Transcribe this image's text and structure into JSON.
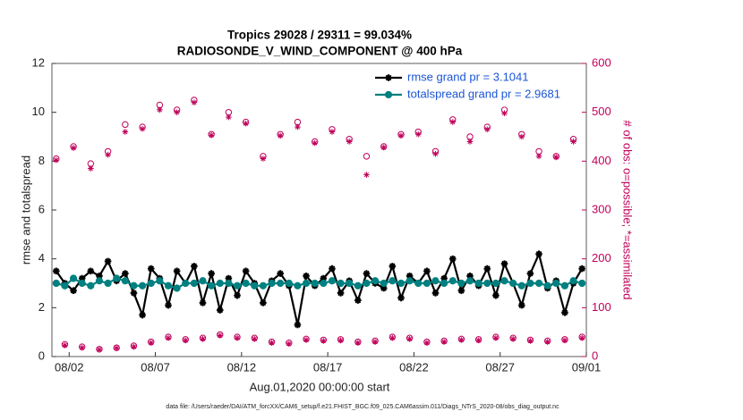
{
  "chart_data": {
    "type": "line",
    "title_lines": [
      "Tropics 29028 / 29311 = 99.034%",
      "RADIOSONDE_V_WIND_COMPONENT @ 400 hPa"
    ],
    "ylabel": "rmse and totalspread",
    "y2label": "# of obs: o=possible; *=assimilated",
    "xlabel": "Aug.01,2020 00:00:00 start",
    "footnote": "data file: /Users/raeder/DAI/ATM_forcXX/CAM6_setup/f.e21.FHIST_BGC.f09_025.CAM6assim.011/Diags_NTrS_2020-08/obs_diag_output.nc",
    "xlim": [
      0,
      31
    ],
    "xticks": [
      {
        "value": 1,
        "label": "08/02"
      },
      {
        "value": 6,
        "label": "08/07"
      },
      {
        "value": 11,
        "label": "08/12"
      },
      {
        "value": 16,
        "label": "08/17"
      },
      {
        "value": 21,
        "label": "08/22"
      },
      {
        "value": 26,
        "label": "08/27"
      },
      {
        "value": 31,
        "label": "09/01"
      }
    ],
    "ylim": [
      0,
      12
    ],
    "yticks": [
      0,
      2,
      4,
      6,
      8,
      10,
      12
    ],
    "y2lim": [
      0,
      600
    ],
    "y2ticks": [
      0,
      100,
      200,
      300,
      400,
      500,
      600
    ],
    "y2color": "#c0005a",
    "legend": "northeast",
    "x": [
      0.25,
      0.75,
      1.25,
      1.75,
      2.25,
      2.75,
      3.25,
      3.75,
      4.25,
      4.75,
      5.25,
      5.75,
      6.25,
      6.75,
      7.25,
      7.75,
      8.25,
      8.75,
      9.25,
      9.75,
      10.25,
      10.75,
      11.25,
      11.75,
      12.25,
      12.75,
      13.25,
      13.75,
      14.25,
      14.75,
      15.25,
      15.75,
      16.25,
      16.75,
      17.25,
      17.75,
      18.25,
      18.75,
      19.25,
      19.75,
      20.25,
      20.75,
      21.25,
      21.75,
      22.25,
      22.75,
      23.25,
      23.75,
      24.25,
      24.75,
      25.25,
      25.75,
      26.25,
      26.75,
      27.25,
      27.75,
      28.25,
      28.75,
      29.25,
      29.75,
      30.25,
      30.75
    ],
    "series": [
      {
        "name": "rmse grand pr = 3.1041",
        "color": "#000000",
        "marker": "*",
        "line": true,
        "values": [
          3.5,
          3.0,
          2.7,
          3.2,
          3.5,
          3.3,
          3.9,
          3.1,
          3.4,
          2.6,
          1.7,
          3.6,
          3.2,
          2.1,
          3.5,
          3.0,
          3.7,
          2.2,
          3.4,
          1.9,
          3.2,
          2.5,
          3.5,
          3.0,
          2.2,
          3.1,
          3.4,
          2.9,
          1.3,
          3.3,
          2.9,
          3.2,
          3.6,
          2.6,
          3.1,
          2.3,
          3.4,
          3.0,
          2.8,
          3.7,
          2.4,
          3.3,
          3.0,
          3.5,
          2.6,
          3.2,
          4.0,
          2.7,
          3.3,
          2.9,
          3.6,
          2.5,
          3.8,
          3.0,
          2.1,
          3.4,
          4.2,
          2.8,
          3.1,
          1.8,
          3.0,
          3.6
        ]
      },
      {
        "name": "totalspread grand pr = 2.9681",
        "color": "#008080",
        "marker": "o",
        "line": true,
        "values": [
          3.0,
          2.9,
          3.2,
          3.0,
          2.9,
          3.1,
          3.0,
          3.2,
          3.1,
          2.9,
          2.9,
          3.0,
          3.1,
          2.9,
          2.8,
          3.0,
          3.0,
          3.1,
          2.9,
          3.0,
          3.0,
          2.9,
          3.0,
          2.9,
          2.9,
          3.0,
          3.0,
          3.0,
          2.9,
          3.0,
          3.0,
          3.0,
          3.1,
          3.0,
          3.0,
          2.9,
          3.0,
          3.1,
          3.0,
          3.1,
          3.0,
          3.1,
          3.0,
          3.0,
          3.1,
          3.0,
          3.1,
          3.0,
          3.1,
          3.0,
          3.0,
          3.0,
          3.1,
          3.0,
          2.9,
          3.0,
          3.0,
          2.9,
          3.0,
          2.9,
          3.1,
          3.0
        ]
      },
      {
        "color": "#c0005a",
        "marker": "o",
        "line": false,
        "axis": "y2",
        "values": [
          405,
          25,
          430,
          20,
          395,
          15,
          420,
          18,
          475,
          22,
          470,
          30,
          515,
          40,
          505,
          35,
          525,
          38,
          455,
          45,
          500,
          40,
          480,
          38,
          410,
          30,
          455,
          28,
          480,
          36,
          440,
          34,
          465,
          35,
          445,
          30,
          410,
          32,
          430,
          40,
          455,
          38,
          460,
          30,
          420,
          32,
          485,
          36,
          450,
          35,
          470,
          40,
          505,
          38,
          455,
          34,
          420,
          32,
          410,
          35,
          445,
          40
        ]
      },
      {
        "color": "#c0005a",
        "marker": "*",
        "line": false,
        "axis": "y2",
        "values": [
          402,
          23,
          427,
          18,
          385,
          14,
          413,
          17,
          460,
          20,
          466,
          28,
          505,
          38,
          500,
          33,
          520,
          36,
          453,
          43,
          490,
          38,
          477,
          36,
          405,
          28,
          452,
          26,
          470,
          34,
          437,
          32,
          460,
          33,
          440,
          28,
          372,
          30,
          428,
          38,
          452,
          36,
          455,
          28,
          415,
          30,
          480,
          34,
          440,
          33,
          465,
          38,
          498,
          36,
          450,
          32,
          410,
          30,
          408,
          33,
          440,
          38
        ]
      }
    ]
  }
}
